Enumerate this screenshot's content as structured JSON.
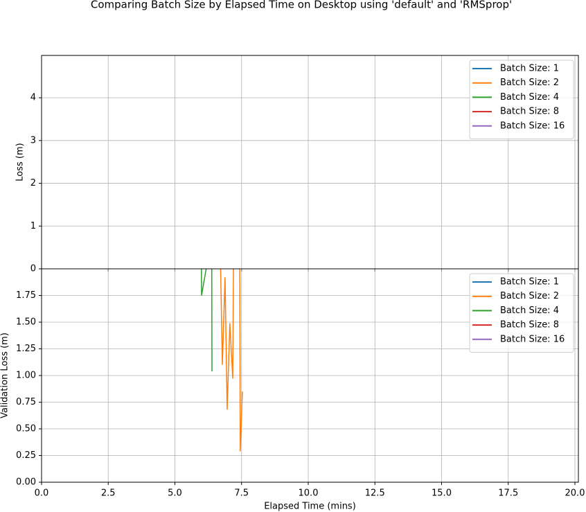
{
  "chart_data": [
    {
      "type": "line",
      "title": "Comparing Batch Size by Elapsed Time on Desktop using 'default' and 'RMSprop'",
      "ylabel": "Loss (m)",
      "xlim": [
        0,
        20.13
      ],
      "ylim": [
        0,
        4.99
      ],
      "xticks": [
        0,
        2.5,
        5,
        7.5,
        10,
        12.5,
        15,
        17.5,
        20
      ],
      "yticks": [
        0,
        1,
        2,
        3,
        4
      ],
      "grid": true,
      "legend": "upper right",
      "series": [
        {
          "name": "Batch Size: 1",
          "color": "#1f77b4",
          "x": [],
          "values": []
        },
        {
          "name": "Batch Size: 2",
          "color": "#ff7f0e",
          "x": [],
          "values": []
        },
        {
          "name": "Batch Size: 4",
          "color": "#2ca02c",
          "x": [],
          "values": []
        },
        {
          "name": "Batch Size: 8",
          "color": "#d62728",
          "x": [],
          "values": []
        },
        {
          "name": "Batch Size: 16",
          "color": "#9467bd",
          "x": [],
          "values": []
        }
      ]
    },
    {
      "type": "line",
      "xlabel": "Elapsed Time (mins)",
      "ylabel": "Validation Loss (m)",
      "xlim": [
        0,
        20.13
      ],
      "ylim": [
        0,
        2
      ],
      "xticks": [
        {
          "value": 0,
          "label": "0.0"
        },
        {
          "value": 2.5,
          "label": "2.5"
        },
        {
          "value": 5,
          "label": "5.0"
        },
        {
          "value": 7.5,
          "label": "7.5"
        },
        {
          "value": 10,
          "label": "10.0"
        },
        {
          "value": 12.5,
          "label": "12.5"
        },
        {
          "value": 15,
          "label": "15.0"
        },
        {
          "value": 17.5,
          "label": "17.5"
        },
        {
          "value": 20,
          "label": "20.0"
        }
      ],
      "yticks": [
        {
          "value": 0,
          "label": "0.00"
        },
        {
          "value": 0.25,
          "label": "0.25"
        },
        {
          "value": 0.5,
          "label": "0.50"
        },
        {
          "value": 0.75,
          "label": "0.75"
        },
        {
          "value": 1,
          "label": "1.00"
        },
        {
          "value": 1.25,
          "label": "1.25"
        },
        {
          "value": 1.5,
          "label": "1.50"
        },
        {
          "value": 1.75,
          "label": "1.75"
        }
      ],
      "grid": true,
      "legend": "upper right",
      "series": [
        {
          "name": "Batch Size: 1",
          "color": "#1f77b4",
          "x": [],
          "values": []
        },
        {
          "name": "Batch Size: 2",
          "color": "#ff7f0e",
          "x": [
            6.7,
            6.78,
            6.88,
            6.96,
            7.06,
            7.17,
            7.2,
            7.43,
            7.45,
            7.53
          ],
          "values": [
            2.2,
            1.1,
            1.92,
            0.68,
            1.49,
            0.97,
            2.2,
            2.2,
            0.29,
            0.85
          ]
        },
        {
          "name": "Batch Size: 4",
          "color": "#2ca02c",
          "x": [
            5.99,
            6.0,
            6.38,
            6.39
          ],
          "values": [
            2.3,
            1.75,
            2.3,
            1.04
          ]
        },
        {
          "name": "Batch Size: 8",
          "color": "#d62728",
          "x": [],
          "values": []
        },
        {
          "name": "Batch Size: 16",
          "color": "#9467bd",
          "x": [],
          "values": []
        }
      ]
    }
  ]
}
